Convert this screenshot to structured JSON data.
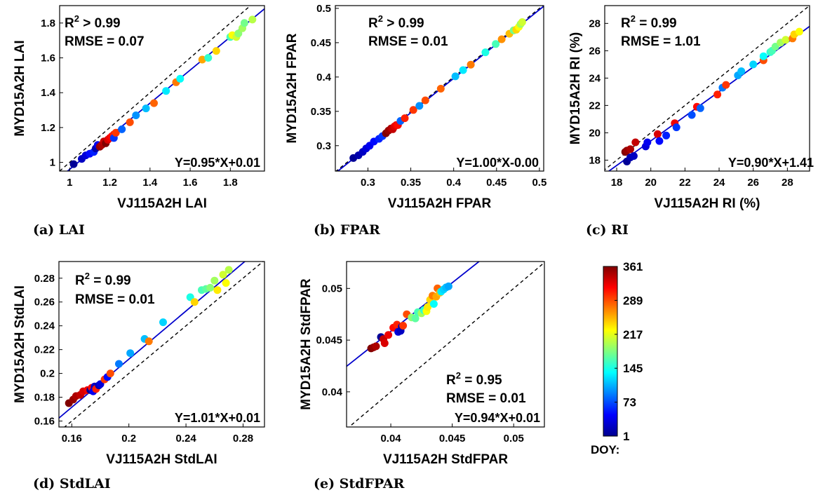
{
  "chart_data": [
    {
      "type": "scatter",
      "panel_label": "(a) LAI",
      "xlabel": "VJ115A2H LAI",
      "ylabel": "MYD15A2H LAI",
      "xlim": [
        0.95,
        1.97
      ],
      "ylim": [
        0.95,
        1.9
      ],
      "xticks": [
        1,
        1.2,
        1.4,
        1.6,
        1.8
      ],
      "xtick_labels": [
        "1",
        "1.2",
        "1.4",
        "1.6",
        "1.8"
      ],
      "yticks": [
        1,
        1.2,
        1.4,
        1.6,
        1.8
      ],
      "ytick_labels": [
        "1",
        "1.2",
        "1.4",
        "1.6",
        "1.8"
      ],
      "stats": [
        {
          "pre": "R",
          "sup": "2",
          "post": " > 0.99"
        },
        {
          "pre": "RMSE = 0.07",
          "sup": "",
          "post": ""
        }
      ],
      "equation": "Y=0.95*X+0.01",
      "fit": {
        "slope": 0.95,
        "intercept": 0.01
      },
      "points": [
        {
          "x": 1.02,
          "y": 0.99,
          "doy": 9
        },
        {
          "x": 1.06,
          "y": 1.02,
          "doy": 25
        },
        {
          "x": 1.08,
          "y": 1.04,
          "doy": 33
        },
        {
          "x": 1.1,
          "y": 1.05,
          "doy": 49
        },
        {
          "x": 1.12,
          "y": 1.06,
          "doy": 57
        },
        {
          "x": 1.13,
          "y": 1.08,
          "doy": 17
        },
        {
          "x": 1.14,
          "y": 1.1,
          "doy": 41
        },
        {
          "x": 1.15,
          "y": 1.09,
          "doy": 353
        },
        {
          "x": 1.16,
          "y": 1.1,
          "doy": 345
        },
        {
          "x": 1.17,
          "y": 1.12,
          "doy": 337
        },
        {
          "x": 1.18,
          "y": 1.11,
          "doy": 361
        },
        {
          "x": 1.19,
          "y": 1.13,
          "doy": 329
        },
        {
          "x": 1.2,
          "y": 1.14,
          "doy": 321
        },
        {
          "x": 1.21,
          "y": 1.15,
          "doy": 313
        },
        {
          "x": 1.22,
          "y": 1.16,
          "doy": 305
        },
        {
          "x": 1.22,
          "y": 1.14,
          "doy": 65
        },
        {
          "x": 1.23,
          "y": 1.17,
          "doy": 297
        },
        {
          "x": 1.26,
          "y": 1.19,
          "doy": 81
        },
        {
          "x": 1.3,
          "y": 1.23,
          "doy": 289
        },
        {
          "x": 1.33,
          "y": 1.27,
          "doy": 97
        },
        {
          "x": 1.38,
          "y": 1.31,
          "doy": 113
        },
        {
          "x": 1.42,
          "y": 1.34,
          "doy": 281
        },
        {
          "x": 1.48,
          "y": 1.41,
          "doy": 129
        },
        {
          "x": 1.53,
          "y": 1.46,
          "doy": 273
        },
        {
          "x": 1.55,
          "y": 1.48,
          "doy": 137
        },
        {
          "x": 1.66,
          "y": 1.59,
          "doy": 257
        },
        {
          "x": 1.69,
          "y": 1.6,
          "doy": 153
        },
        {
          "x": 1.73,
          "y": 1.64,
          "doy": 241
        },
        {
          "x": 1.8,
          "y": 1.72,
          "doy": 161
        },
        {
          "x": 1.81,
          "y": 1.73,
          "doy": 225
        },
        {
          "x": 1.83,
          "y": 1.72,
          "doy": 209
        },
        {
          "x": 1.84,
          "y": 1.74,
          "doy": 185
        },
        {
          "x": 1.86,
          "y": 1.77,
          "doy": 193
        },
        {
          "x": 1.87,
          "y": 1.8,
          "doy": 177
        },
        {
          "x": 1.91,
          "y": 1.82,
          "doy": 201
        }
      ]
    },
    {
      "type": "scatter",
      "panel_label": "(b) FPAR",
      "xlabel": "VJ115A2H FPAR",
      "ylabel": "MYD15A2H FPAR",
      "xlim": [
        0.262,
        0.505
      ],
      "ylim": [
        0.263,
        0.504
      ],
      "xticks": [
        0.3,
        0.35,
        0.4,
        0.45,
        0.5
      ],
      "xtick_labels": [
        "0.3",
        "0.35",
        "0.4",
        "0.45",
        "0.5"
      ],
      "yticks": [
        0.3,
        0.35,
        0.4,
        0.45,
        0.5
      ],
      "ytick_labels": [
        "0.3",
        "0.35",
        "0.4",
        "0.45",
        "0.5"
      ],
      "stats": [
        {
          "pre": "R",
          "sup": "2",
          "post": " > 0.99"
        },
        {
          "pre": "RMSE = 0.01",
          "sup": "",
          "post": ""
        }
      ],
      "equation": "Y=1.00*X-0.00",
      "fit": {
        "slope": 1.0,
        "intercept": -0.002
      },
      "points": [
        {
          "x": 0.283,
          "y": 0.282,
          "doy": 9
        },
        {
          "x": 0.289,
          "y": 0.286,
          "doy": 17
        },
        {
          "x": 0.294,
          "y": 0.291,
          "doy": 25
        },
        {
          "x": 0.298,
          "y": 0.296,
          "doy": 33
        },
        {
          "x": 0.302,
          "y": 0.3,
          "doy": 41
        },
        {
          "x": 0.307,
          "y": 0.306,
          "doy": 49
        },
        {
          "x": 0.313,
          "y": 0.31,
          "doy": 57
        },
        {
          "x": 0.317,
          "y": 0.314,
          "doy": 65
        },
        {
          "x": 0.321,
          "y": 0.318,
          "doy": 361
        },
        {
          "x": 0.324,
          "y": 0.322,
          "doy": 353
        },
        {
          "x": 0.327,
          "y": 0.325,
          "doy": 345
        },
        {
          "x": 0.329,
          "y": 0.324,
          "doy": 337
        },
        {
          "x": 0.331,
          "y": 0.328,
          "doy": 329
        },
        {
          "x": 0.333,
          "y": 0.33,
          "doy": 321
        },
        {
          "x": 0.335,
          "y": 0.33,
          "doy": 313
        },
        {
          "x": 0.338,
          "y": 0.336,
          "doy": 81
        },
        {
          "x": 0.343,
          "y": 0.34,
          "doy": 305
        },
        {
          "x": 0.353,
          "y": 0.352,
          "doy": 297
        },
        {
          "x": 0.36,
          "y": 0.358,
          "doy": 97
        },
        {
          "x": 0.367,
          "y": 0.366,
          "doy": 289
        },
        {
          "x": 0.385,
          "y": 0.383,
          "doy": 281
        },
        {
          "x": 0.402,
          "y": 0.401,
          "doy": 113
        },
        {
          "x": 0.411,
          "y": 0.41,
          "doy": 129
        },
        {
          "x": 0.42,
          "y": 0.418,
          "doy": 273
        },
        {
          "x": 0.437,
          "y": 0.436,
          "doy": 145
        },
        {
          "x": 0.449,
          "y": 0.448,
          "doy": 161
        },
        {
          "x": 0.456,
          "y": 0.455,
          "doy": 265
        },
        {
          "x": 0.465,
          "y": 0.463,
          "doy": 249
        },
        {
          "x": 0.47,
          "y": 0.468,
          "doy": 177
        },
        {
          "x": 0.473,
          "y": 0.469,
          "doy": 241
        },
        {
          "x": 0.476,
          "y": 0.473,
          "doy": 225
        },
        {
          "x": 0.478,
          "y": 0.477,
          "doy": 193
        },
        {
          "x": 0.48,
          "y": 0.48,
          "doy": 209
        }
      ]
    },
    {
      "type": "scatter",
      "panel_label": "(c) RI",
      "xlabel": "VJ115A2H RI (%)",
      "ylabel": "MYD15A2H RI (%)",
      "xlim": [
        17.3,
        29.3
      ],
      "ylim": [
        17.2,
        29.3
      ],
      "xticks": [
        18,
        20,
        22,
        24,
        26,
        28
      ],
      "xtick_labels": [
        "18",
        "20",
        "22",
        "24",
        "26",
        "28"
      ],
      "yticks": [
        18,
        20,
        22,
        24,
        26,
        28
      ],
      "ytick_labels": [
        "18",
        "20",
        "22",
        "24",
        "26",
        "28"
      ],
      "stats": [
        {
          "pre": "R",
          "sup": "2",
          "post": " = 0.99"
        },
        {
          "pre": "RMSE = 1.01",
          "sup": "",
          "post": ""
        }
      ],
      "equation": "Y=0.90*X+1.41",
      "fit": {
        "slope": 0.9,
        "intercept": 1.41
      },
      "points": [
        {
          "x": 18.5,
          "y": 18.6,
          "doy": 361
        },
        {
          "x": 18.6,
          "y": 18.7,
          "doy": 353
        },
        {
          "x": 18.6,
          "y": 17.9,
          "doy": 9
        },
        {
          "x": 18.8,
          "y": 18.8,
          "doy": 345
        },
        {
          "x": 18.8,
          "y": 18.2,
          "doy": 17
        },
        {
          "x": 19.0,
          "y": 18.3,
          "doy": 25
        },
        {
          "x": 19.1,
          "y": 19.3,
          "doy": 337
        },
        {
          "x": 19.7,
          "y": 19.0,
          "doy": 33
        },
        {
          "x": 19.8,
          "y": 19.3,
          "doy": 41
        },
        {
          "x": 20.4,
          "y": 19.9,
          "doy": 329
        },
        {
          "x": 20.5,
          "y": 19.4,
          "doy": 49
        },
        {
          "x": 20.9,
          "y": 19.8,
          "doy": 57
        },
        {
          "x": 21.4,
          "y": 20.7,
          "doy": 321
        },
        {
          "x": 21.5,
          "y": 20.4,
          "doy": 65
        },
        {
          "x": 22.4,
          "y": 21.3,
          "doy": 73
        },
        {
          "x": 22.7,
          "y": 21.9,
          "doy": 313
        },
        {
          "x": 22.9,
          "y": 21.8,
          "doy": 81
        },
        {
          "x": 23.9,
          "y": 22.8,
          "doy": 305
        },
        {
          "x": 24.2,
          "y": 23.3,
          "doy": 89
        },
        {
          "x": 24.4,
          "y": 23.5,
          "doy": 297
        },
        {
          "x": 25.1,
          "y": 24.2,
          "doy": 105
        },
        {
          "x": 25.3,
          "y": 24.5,
          "doy": 113
        },
        {
          "x": 26.0,
          "y": 25.0,
          "doy": 121
        },
        {
          "x": 26.6,
          "y": 25.3,
          "doy": 289
        },
        {
          "x": 26.6,
          "y": 25.6,
          "doy": 137
        },
        {
          "x": 27.0,
          "y": 25.9,
          "doy": 153
        },
        {
          "x": 27.1,
          "y": 26.0,
          "doy": 161
        },
        {
          "x": 27.3,
          "y": 26.3,
          "doy": 177
        },
        {
          "x": 27.6,
          "y": 26.6,
          "doy": 193
        },
        {
          "x": 27.9,
          "y": 26.8,
          "doy": 209
        },
        {
          "x": 28.3,
          "y": 26.9,
          "doy": 273
        },
        {
          "x": 28.4,
          "y": 27.2,
          "doy": 241
        },
        {
          "x": 28.7,
          "y": 27.4,
          "doy": 225
        }
      ]
    },
    {
      "type": "scatter",
      "panel_label": "(d) StdLAI",
      "xlabel": "VJ115A2H StdLAI",
      "ylabel": "MYD15A2H StdLAI",
      "xlim": [
        0.151,
        0.295
      ],
      "ylim": [
        0.155,
        0.294
      ],
      "xticks": [
        0.16,
        0.2,
        0.24,
        0.28
      ],
      "xtick_labels": [
        "0.16",
        "0.2",
        "0.24",
        "0.28"
      ],
      "yticks": [
        0.16,
        0.18,
        0.2,
        0.22,
        0.24,
        0.26,
        0.28
      ],
      "ytick_labels": [
        "0.16",
        "0.18",
        "0.2",
        "0.22",
        "0.24",
        "0.26",
        "0.28"
      ],
      "stats": [
        {
          "pre": "R",
          "sup": "2",
          "post": " = 0.99"
        },
        {
          "pre": "RMSE = 0.01",
          "sup": "",
          "post": ""
        }
      ],
      "equation": "Y=1.01*X+0.01",
      "fit": {
        "slope": 1.01,
        "intercept": 0.01
      },
      "points": [
        {
          "x": 0.158,
          "y": 0.175,
          "doy": 361
        },
        {
          "x": 0.161,
          "y": 0.178,
          "doy": 353
        },
        {
          "x": 0.163,
          "y": 0.181,
          "doy": 345
        },
        {
          "x": 0.166,
          "y": 0.182,
          "doy": 337
        },
        {
          "x": 0.168,
          "y": 0.185,
          "doy": 329
        },
        {
          "x": 0.171,
          "y": 0.186,
          "doy": 321
        },
        {
          "x": 0.173,
          "y": 0.186,
          "doy": 9
        },
        {
          "x": 0.174,
          "y": 0.188,
          "doy": 313
        },
        {
          "x": 0.175,
          "y": 0.185,
          "doy": 41
        },
        {
          "x": 0.176,
          "y": 0.189,
          "doy": 25
        },
        {
          "x": 0.177,
          "y": 0.187,
          "doy": 305
        },
        {
          "x": 0.179,
          "y": 0.19,
          "doy": 17
        },
        {
          "x": 0.18,
          "y": 0.191,
          "doy": 33
        },
        {
          "x": 0.183,
          "y": 0.195,
          "doy": 297
        },
        {
          "x": 0.185,
          "y": 0.197,
          "doy": 49
        },
        {
          "x": 0.187,
          "y": 0.2,
          "doy": 289
        },
        {
          "x": 0.193,
          "y": 0.208,
          "doy": 89
        },
        {
          "x": 0.201,
          "y": 0.217,
          "doy": 105
        },
        {
          "x": 0.211,
          "y": 0.229,
          "doy": 113
        },
        {
          "x": 0.214,
          "y": 0.227,
          "doy": 273
        },
        {
          "x": 0.224,
          "y": 0.243,
          "doy": 121
        },
        {
          "x": 0.243,
          "y": 0.264,
          "doy": 145
        },
        {
          "x": 0.246,
          "y": 0.26,
          "doy": 241
        },
        {
          "x": 0.251,
          "y": 0.27,
          "doy": 161
        },
        {
          "x": 0.254,
          "y": 0.271,
          "doy": 169
        },
        {
          "x": 0.257,
          "y": 0.272,
          "doy": 185
        },
        {
          "x": 0.26,
          "y": 0.278,
          "doy": 193
        },
        {
          "x": 0.262,
          "y": 0.27,
          "doy": 233
        },
        {
          "x": 0.266,
          "y": 0.283,
          "doy": 209
        },
        {
          "x": 0.268,
          "y": 0.276,
          "doy": 225
        },
        {
          "x": 0.27,
          "y": 0.287,
          "doy": 201
        }
      ]
    },
    {
      "type": "scatter",
      "panel_label": "(e) StdFPAR",
      "xlabel": "VJ115A2H StdFPAR",
      "ylabel": "MYD15A2H StdFPAR",
      "xlim": [
        0.0364,
        0.0525
      ],
      "ylim": [
        0.0366,
        0.0526
      ],
      "xticks": [
        0.04,
        0.045,
        0.05
      ],
      "xtick_labels": [
        "0.04",
        "0.045",
        "0.05"
      ],
      "yticks": [
        0.04,
        0.045,
        0.05
      ],
      "ytick_labels": [
        "0.04",
        "0.045",
        "0.05"
      ],
      "stats": [
        {
          "pre": "R",
          "sup": "2",
          "post": " = 0.95"
        },
        {
          "pre": "RMSE = 0.01",
          "sup": "",
          "post": ""
        }
      ],
      "equation": "Y=0.94*X+0.01",
      "fit": {
        "slope": 0.94,
        "intercept": 0.00825
      },
      "points": [
        {
          "x": 0.0384,
          "y": 0.0442,
          "doy": 361
        },
        {
          "x": 0.0386,
          "y": 0.0443,
          "doy": 353
        },
        {
          "x": 0.0388,
          "y": 0.0444,
          "doy": 345
        },
        {
          "x": 0.0392,
          "y": 0.0453,
          "doy": 9
        },
        {
          "x": 0.0394,
          "y": 0.0451,
          "doy": 337
        },
        {
          "x": 0.0395,
          "y": 0.0447,
          "doy": 329
        },
        {
          "x": 0.0398,
          "y": 0.0455,
          "doy": 321
        },
        {
          "x": 0.0402,
          "y": 0.0462,
          "doy": 313
        },
        {
          "x": 0.0405,
          "y": 0.0465,
          "doy": 305
        },
        {
          "x": 0.0406,
          "y": 0.0458,
          "doy": 33
        },
        {
          "x": 0.0408,
          "y": 0.0459,
          "doy": 25
        },
        {
          "x": 0.0409,
          "y": 0.0463,
          "doy": 17
        },
        {
          "x": 0.041,
          "y": 0.0464,
          "doy": 297
        },
        {
          "x": 0.0413,
          "y": 0.0475,
          "doy": 289
        },
        {
          "x": 0.0417,
          "y": 0.0472,
          "doy": 185
        },
        {
          "x": 0.042,
          "y": 0.0471,
          "doy": 169
        },
        {
          "x": 0.0422,
          "y": 0.0477,
          "doy": 161
        },
        {
          "x": 0.0425,
          "y": 0.0476,
          "doy": 193
        },
        {
          "x": 0.0427,
          "y": 0.0479,
          "doy": 153
        },
        {
          "x": 0.0429,
          "y": 0.0478,
          "doy": 225
        },
        {
          "x": 0.043,
          "y": 0.0482,
          "doy": 233
        },
        {
          "x": 0.0432,
          "y": 0.0489,
          "doy": 241
        },
        {
          "x": 0.0434,
          "y": 0.0493,
          "doy": 273
        },
        {
          "x": 0.0435,
          "y": 0.0485,
          "doy": 137
        },
        {
          "x": 0.0437,
          "y": 0.0492,
          "doy": 257
        },
        {
          "x": 0.0438,
          "y": 0.05,
          "doy": 281
        },
        {
          "x": 0.044,
          "y": 0.0496,
          "doy": 249
        },
        {
          "x": 0.0441,
          "y": 0.0497,
          "doy": 129
        },
        {
          "x": 0.0443,
          "y": 0.0499,
          "doy": 121
        },
        {
          "x": 0.0445,
          "y": 0.0501,
          "doy": 113
        },
        {
          "x": 0.0447,
          "y": 0.0502,
          "doy": 105
        }
      ]
    }
  ],
  "colorbar": {
    "label": "DOY:",
    "min": 1,
    "max": 361,
    "ticks": [
      1,
      73,
      145,
      217,
      289,
      361
    ],
    "tick_labels": [
      "1",
      "73",
      "145",
      "217",
      "289",
      "361"
    ],
    "colormap": "jet"
  },
  "colors": {
    "fit_line": "#0000cc",
    "one_to_one_line": "#000000",
    "axes": "#000000"
  }
}
